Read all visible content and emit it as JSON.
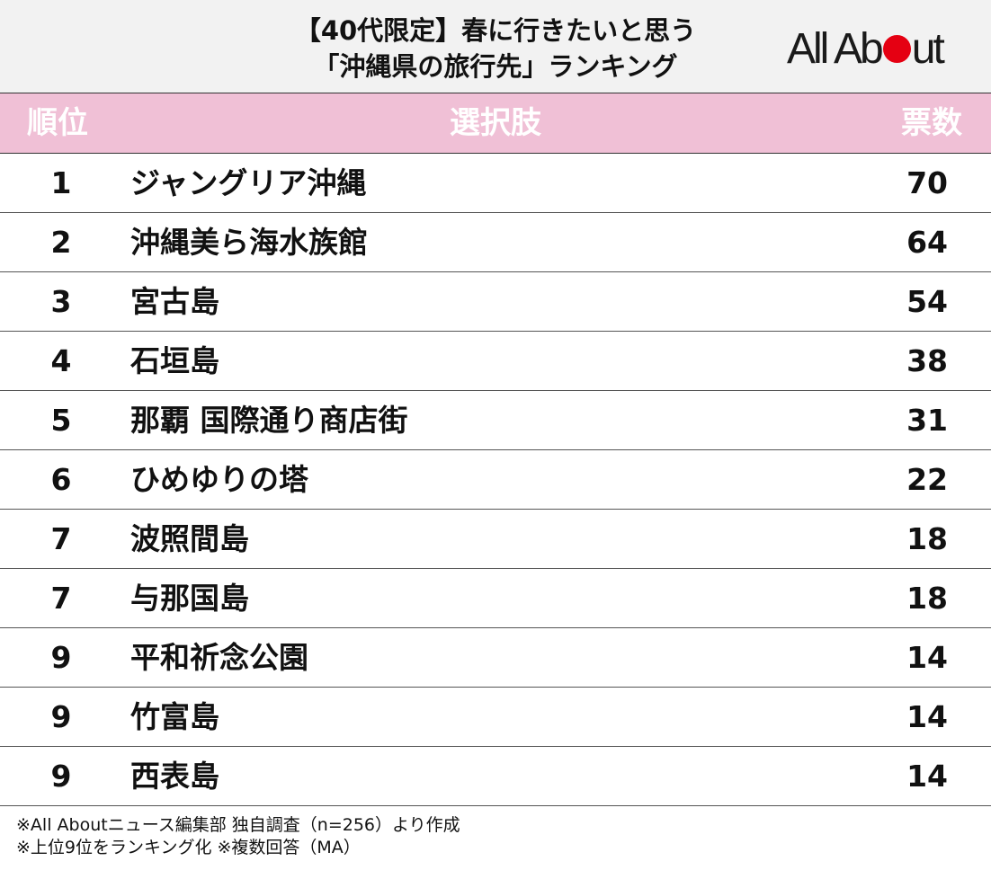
{
  "header": {
    "title_line1": "【40代限定】春に行きたいと思う",
    "title_line2": "「沖縄県の旅行先」ランキング",
    "logo": "All About",
    "logo_accent_color": "#e50012"
  },
  "table_header": {
    "rank": "順位",
    "choice": "選択肢",
    "votes": "票数",
    "background_color": "#f0c0d6"
  },
  "chart_data": {
    "type": "table",
    "title": "【40代限定】春に行きたいと思う「沖縄県の旅行先」ランキング",
    "columns": [
      "順位",
      "選択肢",
      "票数"
    ],
    "rows": [
      {
        "rank": "1",
        "label": "ジャングリア沖縄",
        "votes": "70"
      },
      {
        "rank": "2",
        "label": "沖縄美ら海水族館",
        "votes": "64"
      },
      {
        "rank": "3",
        "label": "宮古島",
        "votes": "54"
      },
      {
        "rank": "4",
        "label": "石垣島",
        "votes": "38"
      },
      {
        "rank": "5",
        "label": "那覇 国際通り商店街",
        "votes": "31"
      },
      {
        "rank": "6",
        "label": "ひめゆりの塔",
        "votes": "22"
      },
      {
        "rank": "7",
        "label": "波照間島",
        "votes": "18"
      },
      {
        "rank": "7",
        "label": "与那国島",
        "votes": "18"
      },
      {
        "rank": "9",
        "label": "平和祈念公園",
        "votes": "14"
      },
      {
        "rank": "9",
        "label": "竹富島",
        "votes": "14"
      },
      {
        "rank": "9",
        "label": "西表島",
        "votes": "14"
      }
    ]
  },
  "footer": {
    "note1": "※All Aboutニュース編集部 独自調査（n=256）より作成",
    "note2": "※上位9位をランキング化 ※複数回答（MA）"
  }
}
